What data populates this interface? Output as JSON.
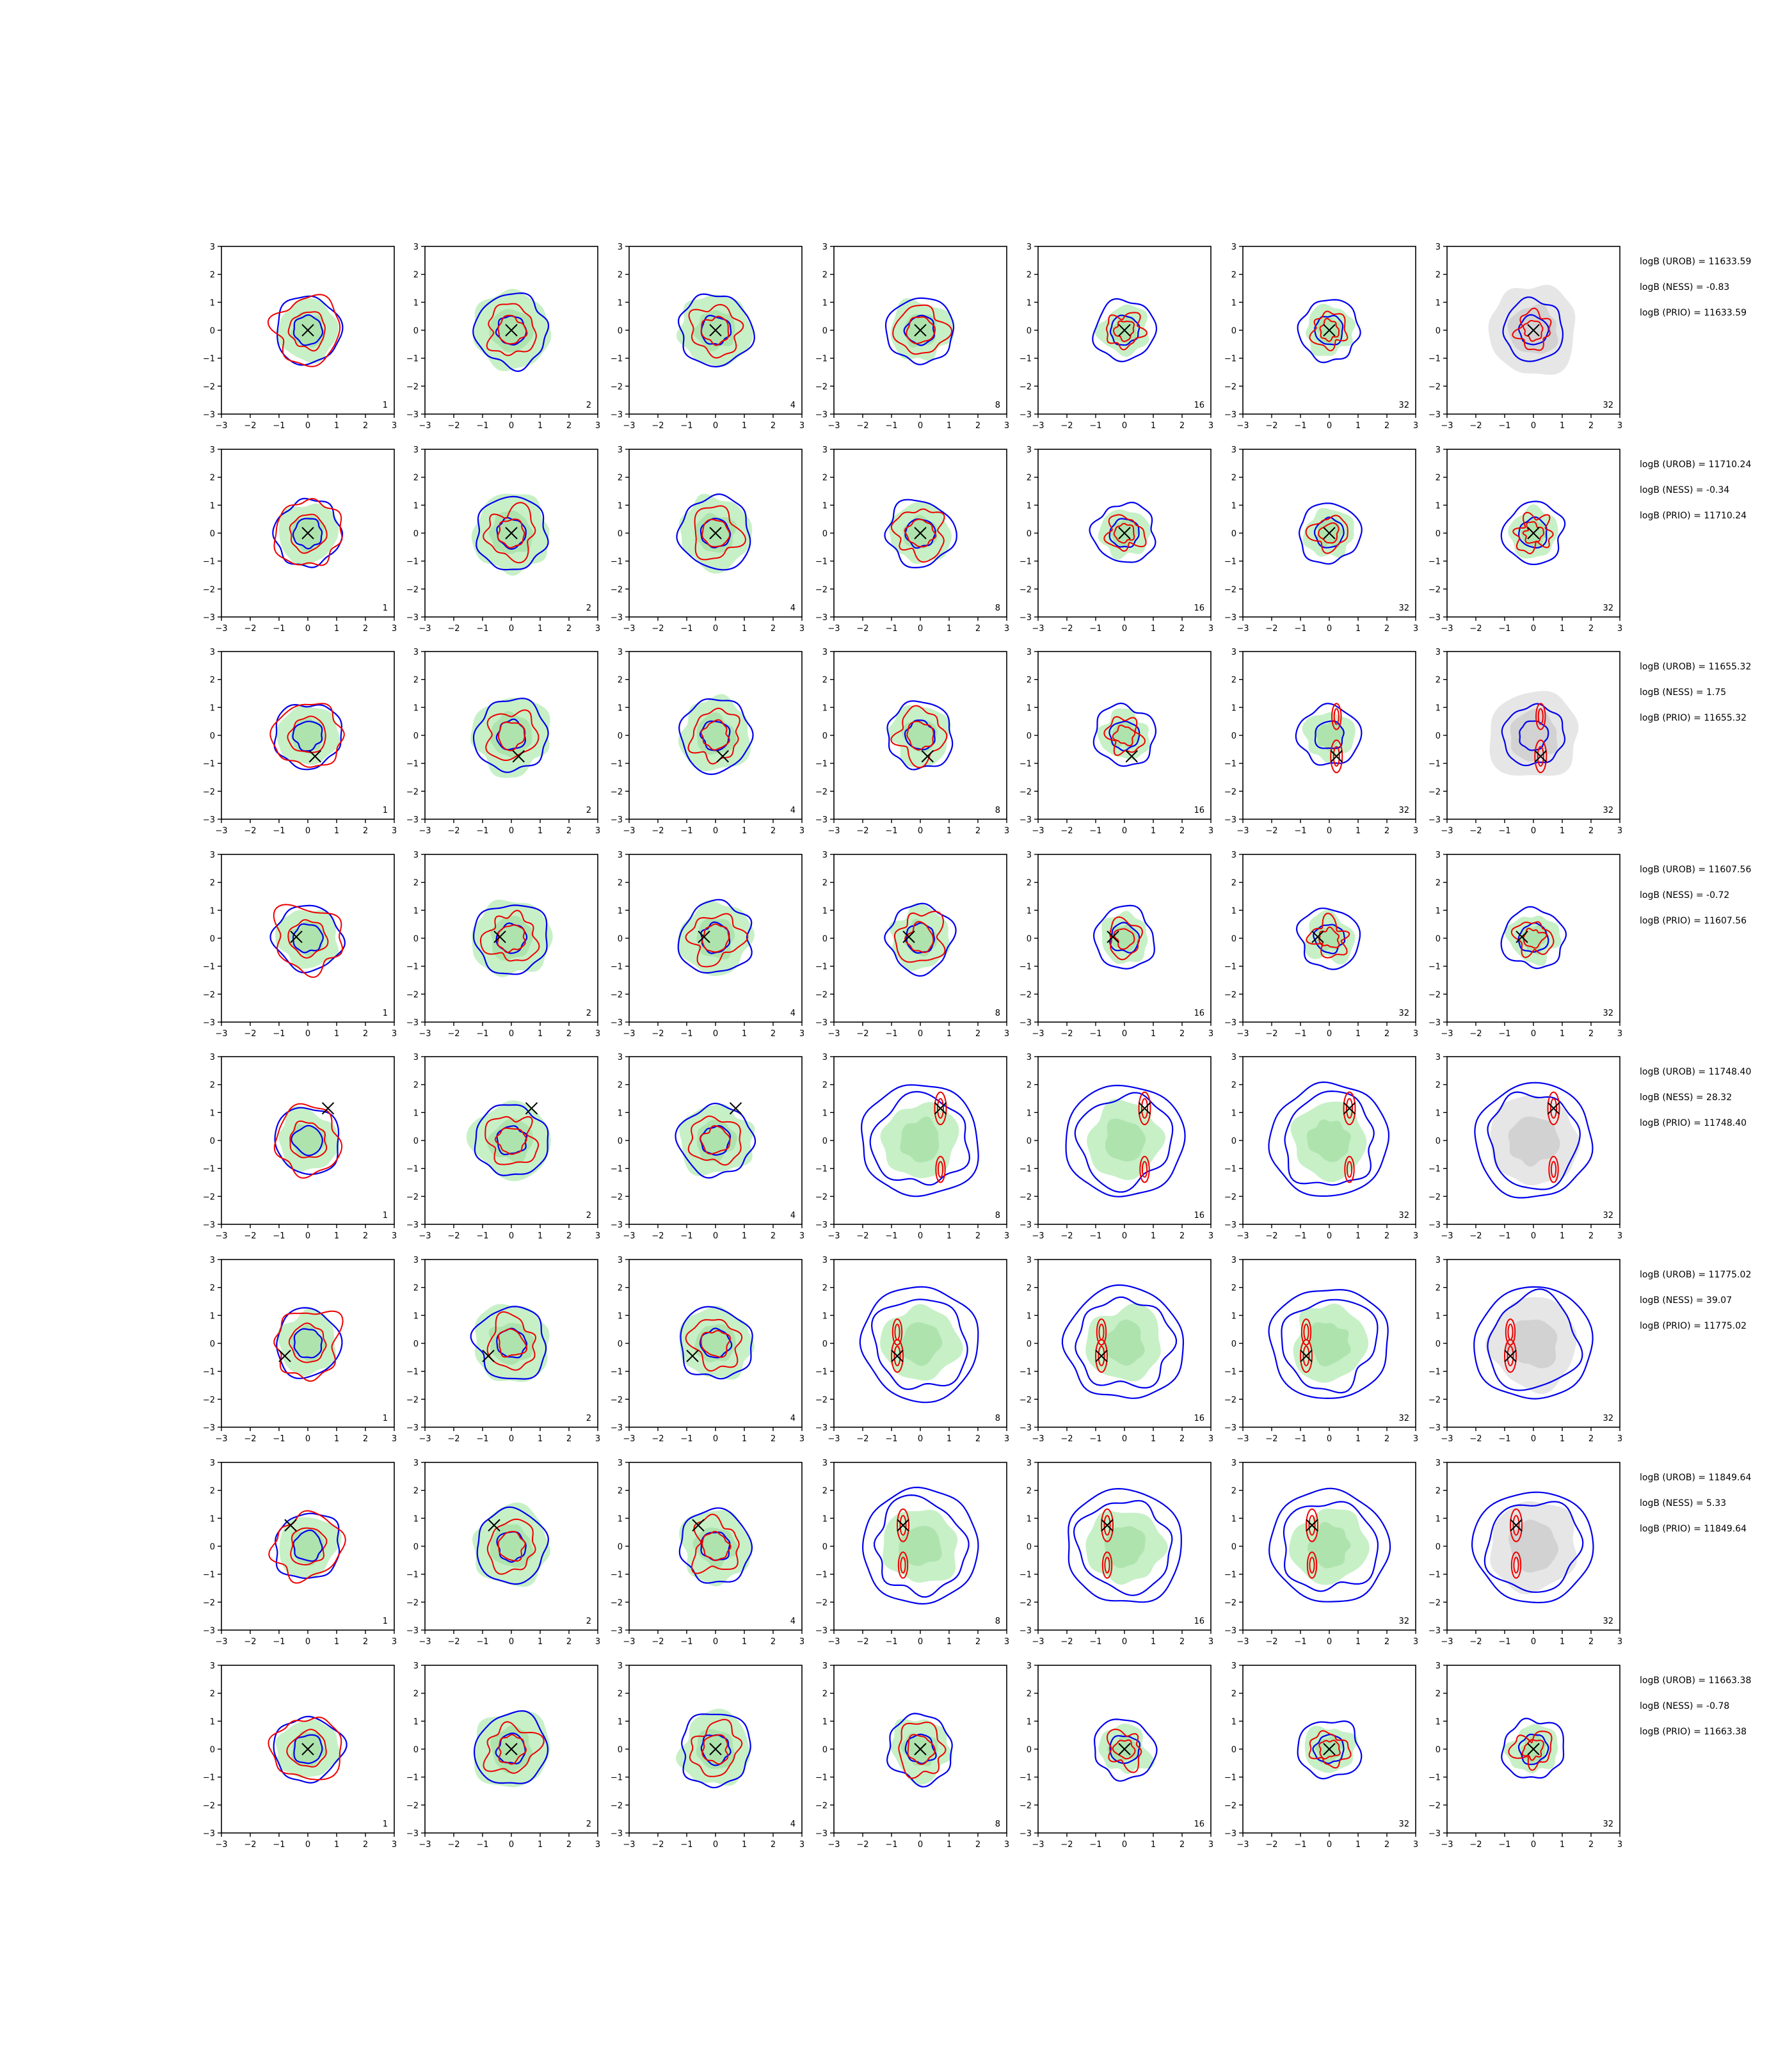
{
  "figure": {
    "description_free": true
  },
  "colors": {
    "green_fill": "#c7f0c7",
    "green_core": "#aee3ae",
    "grey_fill": "#e6e6e6",
    "grey_core": "#d2d2d2",
    "blue_contour": "#0000ee",
    "red_contour": "#ee0000",
    "marker": "#000000",
    "axes": "#000000"
  },
  "chart_data": {
    "type": "contour-grid",
    "rows": 8,
    "cols": 7,
    "xlim": [
      -3,
      3
    ],
    "ylim": [
      -3,
      3
    ],
    "ticks": [
      -3,
      -2,
      -1,
      0,
      1,
      2,
      3
    ],
    "tick_labels": [
      "−3",
      "−2",
      "−1",
      "0",
      "1",
      "2",
      "3"
    ],
    "panel_labels": [
      "1",
      "2",
      "4",
      "8",
      "16",
      "32",
      "32"
    ],
    "last_column_background": "grey",
    "panels": [
      {
        "row": 0,
        "marker": [
          0.0,
          0.0
        ],
        "annotations": [
          "logB (UROB) = 11633.59",
          "logB (NESS) = -0.83",
          "logB (PRIO) = 11633.59"
        ],
        "shape": "central"
      },
      {
        "row": 1,
        "marker": [
          0.0,
          0.0
        ],
        "annotations": [
          "logB (UROB) = 11710.24",
          "logB (NESS) = -0.34",
          "logB (PRIO) = 11710.24"
        ],
        "shape": "central"
      },
      {
        "row": 2,
        "marker": [
          0.25,
          -0.75
        ],
        "annotations": [
          "logB (UROB) = 11655.32",
          "logB (NESS) = 1.75",
          "logB (PRIO) = 11655.32"
        ],
        "shape": "split-vertical"
      },
      {
        "row": 3,
        "marker": [
          -0.4,
          0.05
        ],
        "annotations": [
          "logB (UROB) = 11607.56",
          "logB (NESS) = -0.72",
          "logB (PRIO) = 11607.56"
        ],
        "shape": "central"
      },
      {
        "row": 4,
        "marker": [
          0.7,
          1.15
        ],
        "annotations": [
          "logB (UROB) = 11748.40",
          "logB (NESS) = 28.32",
          "logB (PRIO) = 11748.40"
        ],
        "shape": "ring-right"
      },
      {
        "row": 5,
        "marker": [
          -0.8,
          -0.45
        ],
        "annotations": [
          "logB (UROB) = 11775.02",
          "logB (NESS) = 39.07",
          "logB (PRIO) = 11775.02"
        ],
        "shape": "ring-left"
      },
      {
        "row": 6,
        "marker": [
          -0.6,
          0.75
        ],
        "annotations": [
          "logB (UROB) = 11849.64",
          "logB (NESS) = 5.33",
          "logB (PRIO) = 11849.64"
        ],
        "shape": "ring-left"
      },
      {
        "row": 7,
        "marker": [
          0.0,
          0.0
        ],
        "annotations": [
          "logB (UROB) = 11663.38",
          "logB (NESS) = -0.78",
          "logB (PRIO) = 11663.38"
        ],
        "shape": "central"
      }
    ]
  }
}
